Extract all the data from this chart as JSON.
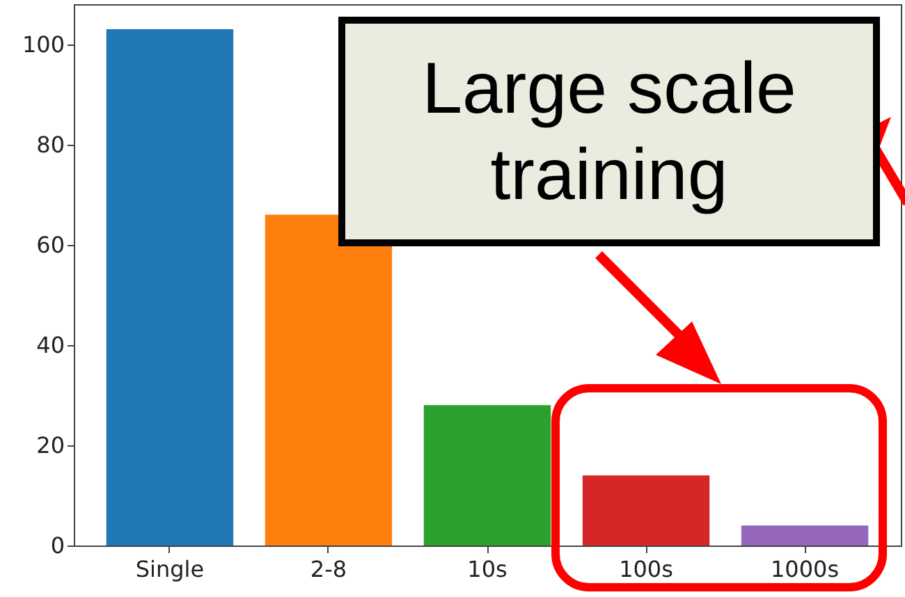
{
  "chart_data": {
    "type": "bar",
    "categories": [
      "Single",
      "2-8",
      "10s",
      "100s",
      "1000s"
    ],
    "values": [
      103,
      66,
      28,
      14,
      4
    ],
    "colors": [
      "#1f77b4",
      "#ff7f0e",
      "#2ca02c",
      "#d62728",
      "#9467bd"
    ],
    "ylim": [
      0,
      108
    ],
    "yticks": [
      0,
      20,
      40,
      60,
      80,
      100
    ],
    "annotations": [
      "Large scale training"
    ]
  }
}
